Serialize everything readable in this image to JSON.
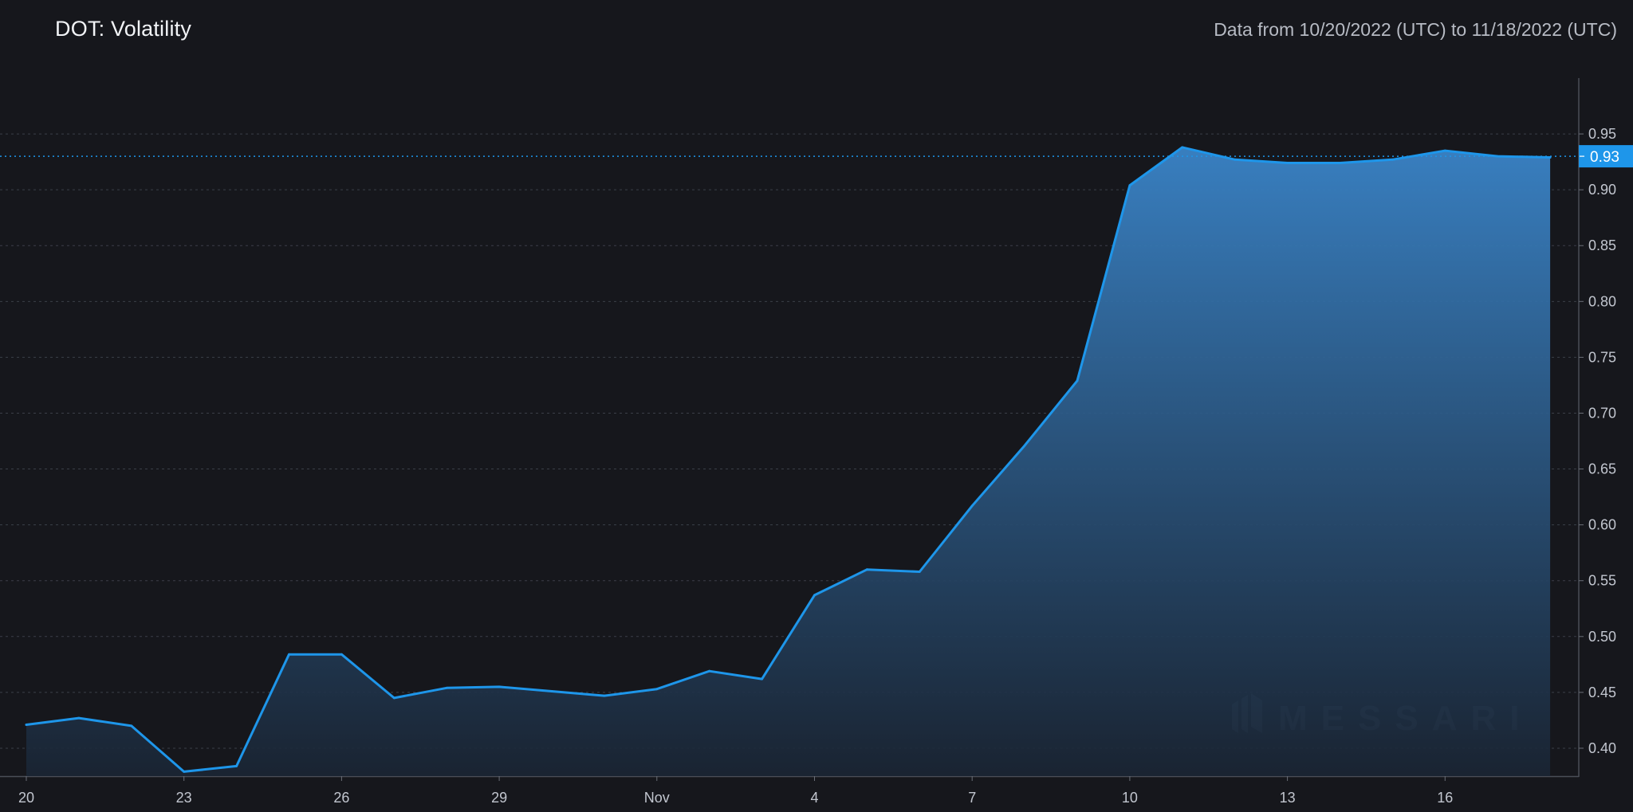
{
  "title": "DOT: Volatility",
  "subtitle": "Data from 10/20/2022 (UTC) to 11/18/2022 (UTC)",
  "watermark": "MESSARI",
  "colors": {
    "background": "#16171c",
    "line": "#1e96ea",
    "area_top": "#3a84c8",
    "area_bottom": "#1a2534",
    "grid": "#3b3f48",
    "last_value_badge": "#1e96ea"
  },
  "chart_data": {
    "type": "area",
    "title": "DOT: Volatility",
    "subtitle": "Data from 10/20/2022 (UTC) to 11/18/2022 (UTC)",
    "xlabel": "",
    "ylabel": "",
    "ylim": [
      0.375,
      1.0
    ],
    "y_ticks": [
      0.4,
      0.45,
      0.5,
      0.55,
      0.6,
      0.65,
      0.7,
      0.75,
      0.8,
      0.85,
      0.9,
      0.95
    ],
    "y_tick_labels": [
      "0.40",
      "0.45",
      "0.50",
      "0.55",
      "0.60",
      "0.65",
      "0.70",
      "0.75",
      "0.80",
      "0.85",
      "0.90",
      "0.95"
    ],
    "x_ticks": [
      "2022-10-20",
      "2022-10-23",
      "2022-10-26",
      "2022-10-29",
      "2022-11-01",
      "2022-11-04",
      "2022-11-07",
      "2022-11-10",
      "2022-11-13",
      "2022-11-16"
    ],
    "x_tick_labels": [
      "20",
      "23",
      "26",
      "29",
      "Nov",
      "4",
      "7",
      "10",
      "13",
      "16"
    ],
    "grid": true,
    "legend": "none",
    "last_value": 0.93,
    "last_value_label": "0.93",
    "series": [
      {
        "x": [
          "2022-10-20",
          "2022-10-21",
          "2022-10-22",
          "2022-10-23",
          "2022-10-24",
          "2022-10-25",
          "2022-10-26",
          "2022-10-27",
          "2022-10-28",
          "2022-10-29",
          "2022-10-30",
          "2022-10-31",
          "2022-11-01",
          "2022-11-02",
          "2022-11-03",
          "2022-11-04",
          "2022-11-05",
          "2022-11-06",
          "2022-11-07",
          "2022-11-08",
          "2022-11-09",
          "2022-11-10",
          "2022-11-11",
          "2022-11-12",
          "2022-11-13",
          "2022-11-14",
          "2022-11-15",
          "2022-11-16",
          "2022-11-17",
          "2022-11-18"
        ],
        "values": [
          0.421,
          0.427,
          0.42,
          0.379,
          0.384,
          0.484,
          0.484,
          0.445,
          0.454,
          0.455,
          0.451,
          0.447,
          0.453,
          0.469,
          0.462,
          0.537,
          0.56,
          0.558,
          0.617,
          0.671,
          0.729,
          0.904,
          0.938,
          0.927,
          0.924,
          0.924,
          0.927,
          0.935,
          0.93,
          0.929
        ]
      }
    ]
  }
}
